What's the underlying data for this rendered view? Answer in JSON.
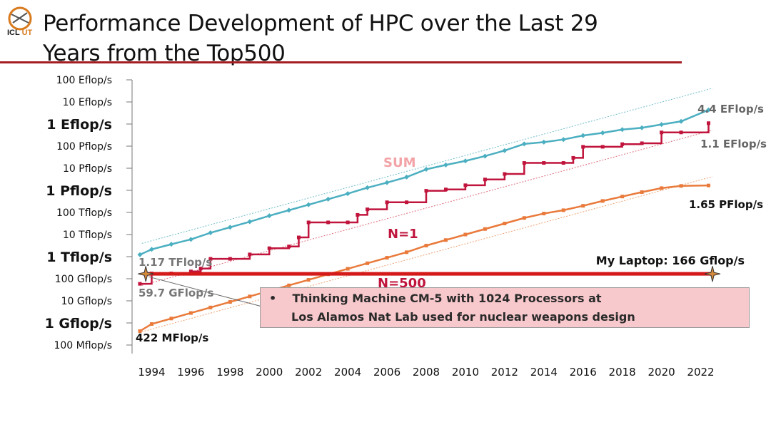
{
  "header": {
    "title_line1": "Performance Development of HPC over the Last 29",
    "title_line2": "Years from the Top500",
    "logo_text_a": "ICL",
    "logo_text_b": "UT",
    "logo_color": "#d97a1e",
    "rule_color": "#a41d23"
  },
  "callout": {
    "bullet": "•",
    "line1": "Thinking Machine CM-5 with 1024 Processors at",
    "line2": "Los Alamos Nat Lab used for nuclear weapons design",
    "fill": "#f8c9cc"
  },
  "chart_data": {
    "type": "line",
    "y_scale": "log10",
    "ylim_flops": [
      100000000.0,
      1e+20
    ],
    "xlim": [
      1993,
      2022.6
    ],
    "y_tick_labels": [
      "100 Eflop/s",
      "10 Eflop/s",
      "1 Eflop/s",
      "100 Pflop/s",
      "10 Pflop/s",
      "1 Pflop/s",
      "100 Tflop/s",
      "10 Tflop/s",
      "1 Tflop/s",
      "100 Gflop/s",
      "10 Gflop/s",
      "1 Gflop/s",
      "100 Mflop/s"
    ],
    "y_tick_values_log10": [
      20,
      19,
      18,
      17,
      16,
      15,
      14,
      13,
      12,
      11,
      10,
      9,
      8
    ],
    "y_tick_bold": [
      false,
      false,
      true,
      false,
      false,
      true,
      false,
      false,
      true,
      false,
      false,
      true,
      false
    ],
    "x_tick_labels": [
      "1994",
      "1996",
      "1998",
      "2000",
      "2002",
      "2004",
      "2006",
      "2008",
      "2010",
      "2012",
      "2014",
      "2016",
      "2018",
      "2020",
      "2022"
    ],
    "series": [
      {
        "name": "SUM",
        "color": "#4bafc1",
        "x": [
          1993.4,
          1994,
          1995,
          1996,
          1997,
          1998,
          1999,
          2000,
          2001,
          2002,
          2003,
          2004,
          2005,
          2006,
          2007,
          2008,
          2009,
          2010,
          2011,
          2012,
          2013,
          2014,
          2015,
          2016,
          2017,
          2018,
          2019,
          2020,
          2021,
          2022.4
        ],
        "log10": [
          12.09,
          12.33,
          12.56,
          12.78,
          13.08,
          13.33,
          13.58,
          13.85,
          14.1,
          14.35,
          14.6,
          14.85,
          15.12,
          15.35,
          15.6,
          15.95,
          16.15,
          16.33,
          16.55,
          16.8,
          17.1,
          17.18,
          17.3,
          17.48,
          17.6,
          17.75,
          17.83,
          17.98,
          18.12,
          18.64
        ],
        "end_label": "4.4 EFlop/s"
      },
      {
        "name": "N=1",
        "color": "#c0143c",
        "x": [
          1993.4,
          1994,
          1995,
          1996,
          1996.5,
          1997,
          1998,
          1999,
          2000,
          2001,
          2001.5,
          2002,
          2003,
          2004,
          2004.5,
          2005,
          2006,
          2007,
          2008,
          2009,
          2010,
          2011,
          2012,
          2013,
          2014,
          2015,
          2015.5,
          2016,
          2017,
          2018,
          2019,
          2020,
          2021,
          2022.4
        ],
        "log10": [
          10.77,
          11.24,
          11.24,
          11.33,
          11.46,
          11.9,
          11.9,
          12.1,
          12.38,
          12.46,
          12.87,
          13.55,
          13.55,
          13.55,
          13.89,
          14.14,
          14.46,
          14.46,
          14.98,
          15.04,
          15.23,
          15.49,
          15.74,
          16.24,
          16.24,
          16.24,
          16.47,
          16.97,
          16.97,
          17.09,
          17.13,
          17.62,
          17.62,
          18.04
        ],
        "start_label": "59.7 GFlop/s",
        "mid_label": "1.17 TFlop/s",
        "end_label": "1.1 EFlop/s"
      },
      {
        "name": "N=500",
        "color": "#e97a3b",
        "x": [
          1993.4,
          1994,
          1995,
          1996,
          1997,
          1998,
          1999,
          2000,
          2001,
          2002,
          2003,
          2004,
          2005,
          2006,
          2007,
          2008,
          2009,
          2010,
          2011,
          2012,
          2013,
          2014,
          2015,
          2016,
          2017,
          2018,
          2019,
          2020,
          2021,
          2022.4
        ],
        "log10": [
          8.63,
          8.95,
          9.2,
          9.45,
          9.7,
          9.95,
          10.2,
          10.45,
          10.7,
          10.95,
          11.2,
          11.45,
          11.7,
          11.95,
          12.2,
          12.5,
          12.75,
          13,
          13.25,
          13.5,
          13.75,
          13.95,
          14.1,
          14.3,
          14.52,
          14.72,
          14.92,
          15.1,
          15.2,
          15.22
        ],
        "start_label": "422 MFlop/s",
        "end_label": "1.65 PFlop/s"
      }
    ],
    "series_labels": [
      "SUM",
      "N=1",
      "N=500"
    ],
    "trend_lines": [
      {
        "name": "sum-trend",
        "color": "#6fbcc9",
        "x": [
          1993.5,
          2022.6
        ],
        "log10": [
          12.6,
          19.62
        ]
      },
      {
        "name": "n1-trend",
        "color": "#e06a7a",
        "x": [
          1993.5,
          2022.6
        ],
        "log10": [
          10.7,
          17.72
        ]
      },
      {
        "name": "n500-trend",
        "color": "#f0a070",
        "x": [
          1993.5,
          2022.6
        ],
        "log10": [
          8.6,
          15.62
        ]
      }
    ],
    "reference": {
      "label": "My Laptop: 166 Gflop/s",
      "value_log10": 11.22,
      "color": "#d41919"
    },
    "cm5_star_x": 1993.7
  }
}
